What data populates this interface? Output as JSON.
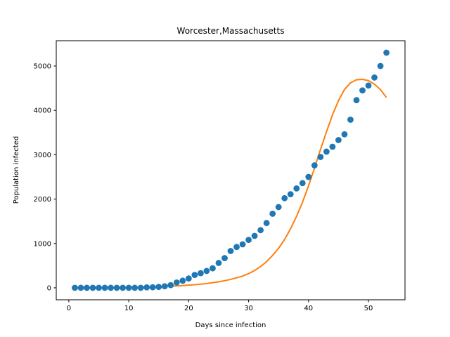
{
  "chart_data": {
    "type": "scatter",
    "title": "Worcester,Massachusetts",
    "xlabel": "Days since infection",
    "ylabel": "Population infected",
    "xlim": [
      -2.1,
      56.1
    ],
    "ylim": [
      -270,
      5570
    ],
    "xticks": [
      0,
      10,
      20,
      30,
      40,
      50
    ],
    "yticks": [
      0,
      1000,
      2000,
      3000,
      4000,
      5000
    ],
    "grid": false,
    "legend": "none",
    "series": [
      {
        "style": "markers",
        "color": "#1f77b4",
        "x": [
          1,
          2,
          3,
          4,
          5,
          6,
          7,
          8,
          9,
          10,
          11,
          12,
          13,
          14,
          15,
          16,
          17,
          18,
          19,
          20,
          21,
          22,
          23,
          24,
          25,
          26,
          27,
          28,
          29,
          30,
          31,
          32,
          33,
          34,
          35,
          36,
          37,
          38,
          39,
          40,
          41,
          42,
          43,
          44,
          45,
          46,
          47,
          48,
          49,
          50,
          51,
          52,
          53
        ],
        "y": [
          0,
          0,
          0,
          0,
          0,
          0,
          0,
          0,
          0,
          0,
          0,
          0,
          10,
          12,
          20,
          35,
          60,
          120,
          160,
          210,
          290,
          330,
          380,
          440,
          560,
          670,
          830,
          920,
          980,
          1080,
          1170,
          1300,
          1460,
          1670,
          1820,
          2020,
          2110,
          2240,
          2360,
          2500,
          2760,
          2950,
          3070,
          3180,
          3330,
          3460,
          3790,
          4230,
          4450,
          4560,
          4740,
          5000,
          5300
        ]
      },
      {
        "style": "line",
        "color": "#ff7f0e",
        "x": [
          1,
          2,
          3,
          4,
          5,
          6,
          7,
          8,
          9,
          10,
          11,
          12,
          13,
          14,
          15,
          16,
          17,
          18,
          19,
          20,
          21,
          22,
          23,
          24,
          25,
          26,
          27,
          28,
          29,
          30,
          31,
          32,
          33,
          34,
          35,
          36,
          37,
          38,
          39,
          40,
          41,
          42,
          43,
          44,
          45,
          46,
          47,
          48,
          49,
          50,
          51,
          52,
          53
        ],
        "y": [
          2,
          3,
          4,
          5,
          6,
          7,
          8,
          9,
          10,
          12,
          14,
          16,
          18,
          21,
          25,
          30,
          35,
          42,
          50,
          60,
          70,
          83,
          97,
          115,
          135,
          160,
          190,
          225,
          265,
          320,
          390,
          480,
          590,
          730,
          890,
          1090,
          1330,
          1610,
          1930,
          2300,
          2700,
          3120,
          3520,
          3900,
          4220,
          4470,
          4620,
          4690,
          4700,
          4670,
          4590,
          4470,
          4290
        ]
      }
    ]
  }
}
